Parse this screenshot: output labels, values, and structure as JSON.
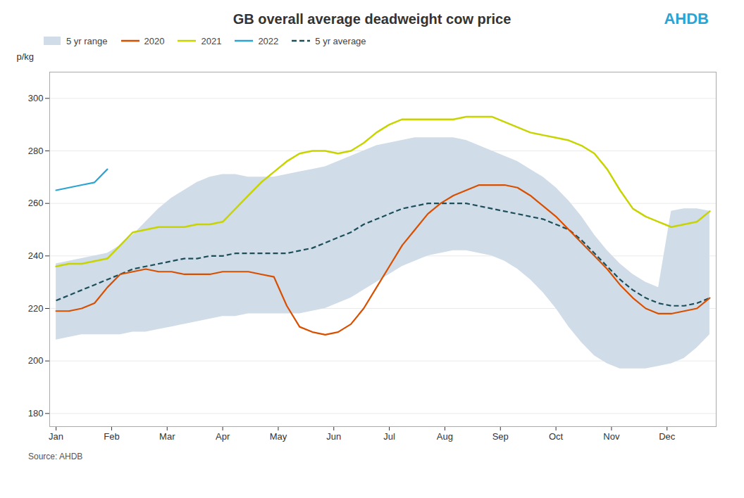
{
  "chart_data": {
    "type": "line",
    "title": "GB overall average deadweight cow price",
    "ylabel": "p/kg",
    "caption": "Source: AHDB",
    "annotations": [
      {
        "text": "AHDB",
        "color": "#2ba4d4"
      }
    ],
    "x": [
      0,
      1,
      2,
      3,
      4,
      5,
      6,
      7,
      8,
      9,
      10,
      11,
      12,
      13,
      14,
      15,
      16,
      17,
      18,
      19,
      20,
      21,
      22,
      23,
      24,
      25,
      26,
      27,
      28,
      29,
      30,
      31,
      32,
      33,
      34,
      35,
      36,
      37,
      38,
      39,
      40,
      41,
      42,
      43,
      44,
      45,
      46,
      47,
      48,
      49,
      50,
      51
    ],
    "xlim": [
      -0.5,
      51.5
    ],
    "xticks": [
      {
        "value": 0,
        "label": "Jan"
      },
      {
        "value": 4.333333333333333,
        "label": "Feb"
      },
      {
        "value": 8.666666666666666,
        "label": "Mar"
      },
      {
        "value": 13,
        "label": "Apr"
      },
      {
        "value": 17.333333333333332,
        "label": "May"
      },
      {
        "value": 21.666666666666664,
        "label": "Jun"
      },
      {
        "value": 26,
        "label": "Jul"
      },
      {
        "value": 30.333333333333332,
        "label": "Aug"
      },
      {
        "value": 34.666666666666664,
        "label": "Sep"
      },
      {
        "value": 39,
        "label": "Oct"
      },
      {
        "value": 43.33333333333333,
        "label": "Nov"
      },
      {
        "value": 47.666666666666664,
        "label": "Dec"
      }
    ],
    "ylim": [
      175,
      310
    ],
    "yticks": [
      180,
      200,
      220,
      240,
      260,
      280,
      300
    ],
    "grid": true,
    "legend": "upper left",
    "series": [
      {
        "name": "5 yr range",
        "type": "area",
        "color": "#d0dce8",
        "upper": [
          237,
          238,
          239,
          240,
          241,
          244,
          248,
          253,
          258,
          262,
          265,
          268,
          270,
          271,
          271,
          270,
          270,
          270,
          271,
          272,
          273,
          274,
          276,
          278,
          280,
          282,
          283,
          284,
          285,
          285,
          285,
          285,
          284,
          282,
          280,
          278,
          276,
          273,
          270,
          266,
          261,
          255,
          248,
          242,
          237,
          233,
          230,
          228,
          257,
          258,
          258,
          257
        ],
        "lower": [
          208,
          209,
          210,
          210,
          210,
          210,
          211,
          211,
          212,
          213,
          214,
          215,
          216,
          217,
          217,
          218,
          218,
          218,
          218,
          218,
          219,
          220,
          222,
          224,
          227,
          230,
          233,
          236,
          238,
          240,
          241,
          242,
          242,
          241,
          240,
          238,
          235,
          231,
          226,
          220,
          213,
          207,
          202,
          199,
          197,
          197,
          197,
          198,
          199,
          201,
          205,
          210
        ]
      },
      {
        "name": "2020",
        "type": "line",
        "color": "#d94f00",
        "line_style": "solid",
        "values": [
          219,
          219,
          220,
          222,
          228,
          233,
          234,
          235,
          234,
          234,
          233,
          233,
          233,
          234,
          234,
          234,
          233,
          232,
          221,
          213,
          211,
          210,
          211,
          214,
          220,
          228,
          236,
          244,
          250,
          256,
          260,
          263,
          265,
          267,
          267,
          267,
          266,
          263,
          259,
          255,
          250,
          245,
          240,
          235,
          229,
          224,
          220,
          218,
          218,
          219,
          220,
          224
        ]
      },
      {
        "name": "2021",
        "type": "line",
        "color": "#c8d400",
        "line_style": "solid",
        "values": [
          236,
          237,
          237,
          238,
          239,
          244,
          249,
          250,
          251,
          251,
          251,
          252,
          252,
          253,
          258,
          263,
          268,
          272,
          276,
          279,
          280,
          280,
          279,
          280,
          283,
          287,
          290,
          292,
          292,
          292,
          292,
          292,
          293,
          293,
          293,
          291,
          289,
          287,
          286,
          285,
          284,
          282,
          279,
          273,
          265,
          258,
          255,
          253,
          251,
          252,
          253,
          257
        ]
      },
      {
        "name": "2022",
        "type": "line",
        "color": "#2ba4d4",
        "line_style": "solid",
        "values": [
          265,
          266,
          267,
          268,
          273,
          null,
          null,
          null,
          null,
          null,
          null,
          null,
          null,
          null,
          null,
          null,
          null,
          null,
          null,
          null,
          null,
          null,
          null,
          null,
          null,
          null,
          null,
          null,
          null,
          null,
          null,
          null,
          null,
          null,
          null,
          null,
          null,
          null,
          null,
          null,
          null,
          null,
          null,
          null,
          null,
          null,
          null,
          null,
          null,
          null,
          null,
          null
        ]
      },
      {
        "name": "5 yr average",
        "type": "line",
        "color": "#1c4f5a",
        "line_style": "dashed",
        "values": [
          223,
          225,
          227,
          229,
          231,
          233,
          235,
          236,
          237,
          238,
          239,
          239,
          240,
          240,
          241,
          241,
          241,
          241,
          241,
          242,
          243,
          245,
          247,
          249,
          252,
          254,
          256,
          258,
          259,
          260,
          260,
          260,
          260,
          259,
          258,
          257,
          256,
          255,
          254,
          252,
          250,
          246,
          241,
          236,
          231,
          227,
          224,
          222,
          221,
          221,
          222,
          224
        ]
      }
    ]
  }
}
